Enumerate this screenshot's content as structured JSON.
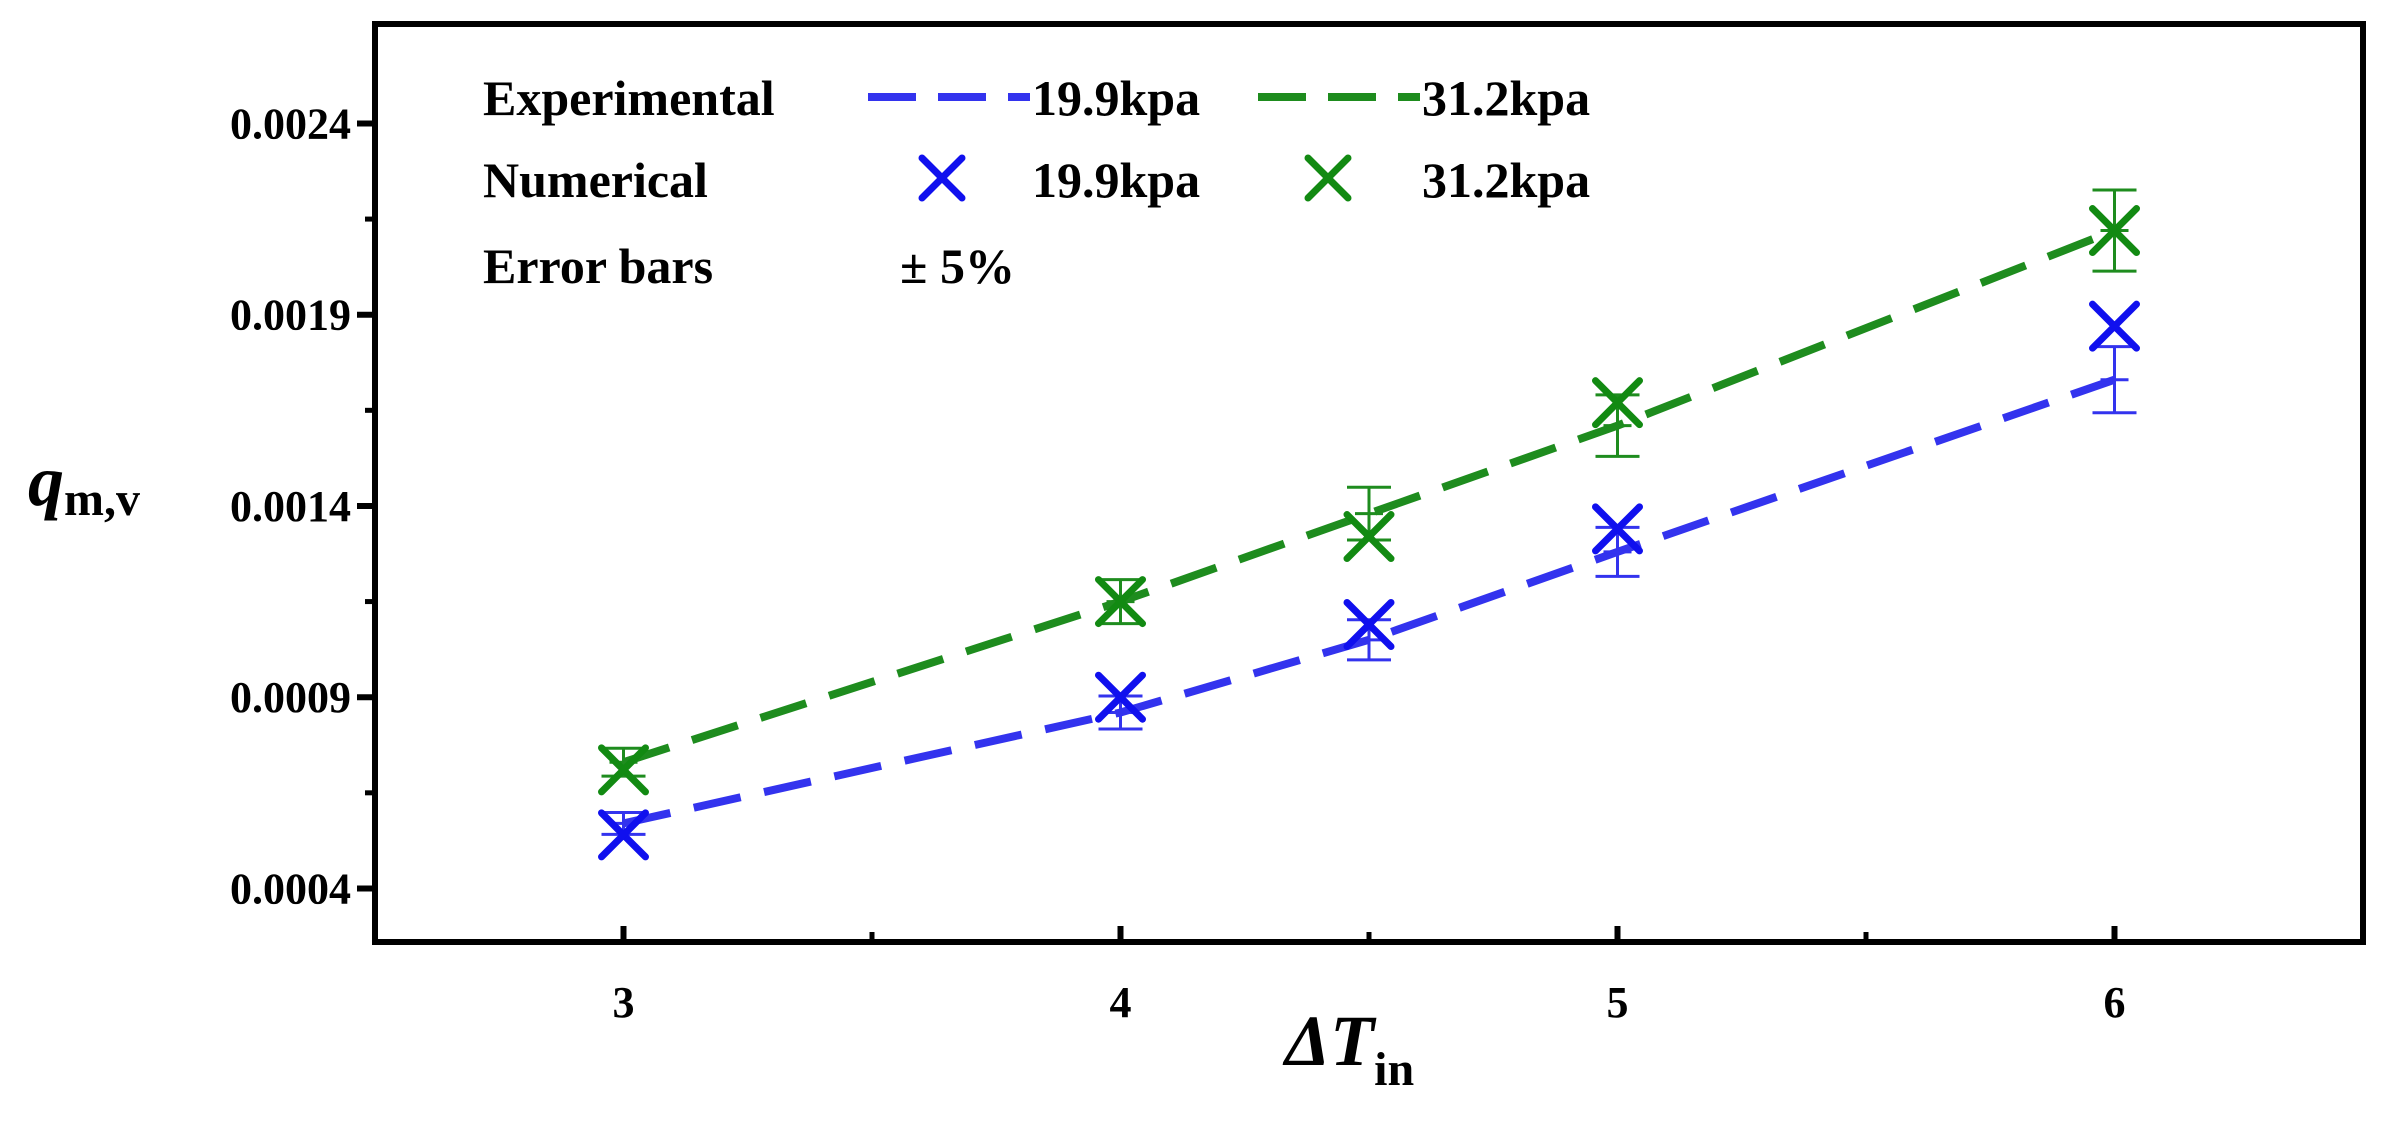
{
  "chart_data": {
    "type": "line",
    "title": "",
    "xlabel": {
      "main": "ΔT",
      "sub": "in"
    },
    "ylabel": {
      "main": "q",
      "sub": "m,v"
    },
    "xlim": [
      2.5,
      6.5
    ],
    "ylim": [
      0.00026,
      0.00266
    ],
    "xticks": [
      3,
      4,
      5,
      6
    ],
    "x_minor_ticks": [
      3.5,
      4.5,
      5.5
    ],
    "xtick_labels": [
      "3",
      "4",
      "5",
      "6"
    ],
    "yticks": [
      0.0004,
      0.0009,
      0.0014,
      0.0019,
      0.0024
    ],
    "y_minor_ticks": [
      0.00065,
      0.00115,
      0.00165,
      0.00215
    ],
    "ytick_labels": [
      "0.0004",
      "0.0009",
      "0.0014",
      "0.0019",
      "0.0024"
    ],
    "x": [
      3,
      4,
      4.5,
      5,
      6
    ],
    "series": [
      {
        "name": "19.9kpa",
        "kind": "Experimental",
        "style": "dashed-line",
        "color": "#3333ee",
        "values": [
          0.00057,
          0.00086,
          0.00105,
          0.00128,
          0.00173
        ]
      },
      {
        "name": "31.2kpa",
        "kind": "Experimental",
        "style": "dashed-line",
        "color": "#1e8c1e",
        "values": [
          0.00073,
          0.00115,
          0.00138,
          0.00161,
          0.00212
        ]
      },
      {
        "name": "19.9kpa",
        "kind": "Numerical",
        "style": "x-marker",
        "color": "#1010ee",
        "values": [
          0.00054,
          0.0009,
          0.00109,
          0.00134,
          0.00187
        ]
      },
      {
        "name": "31.2kpa",
        "kind": "Numerical",
        "style": "x-marker",
        "color": "#128a12",
        "values": [
          0.00071,
          0.00115,
          0.00132,
          0.00167,
          0.00212
        ]
      }
    ],
    "error_bars": {
      "relative": 0.05,
      "applied_to": "Experimental"
    },
    "legend": {
      "position": "top-left",
      "rows": [
        {
          "label": "Experimental",
          "entries": [
            "19.9kpa",
            "31.2kpa"
          ]
        },
        {
          "label": "Numerical",
          "entries": [
            "19.9kpa",
            "31.2kpa"
          ]
        },
        {
          "label": "Error bars",
          "value": "± 5%"
        }
      ]
    }
  }
}
